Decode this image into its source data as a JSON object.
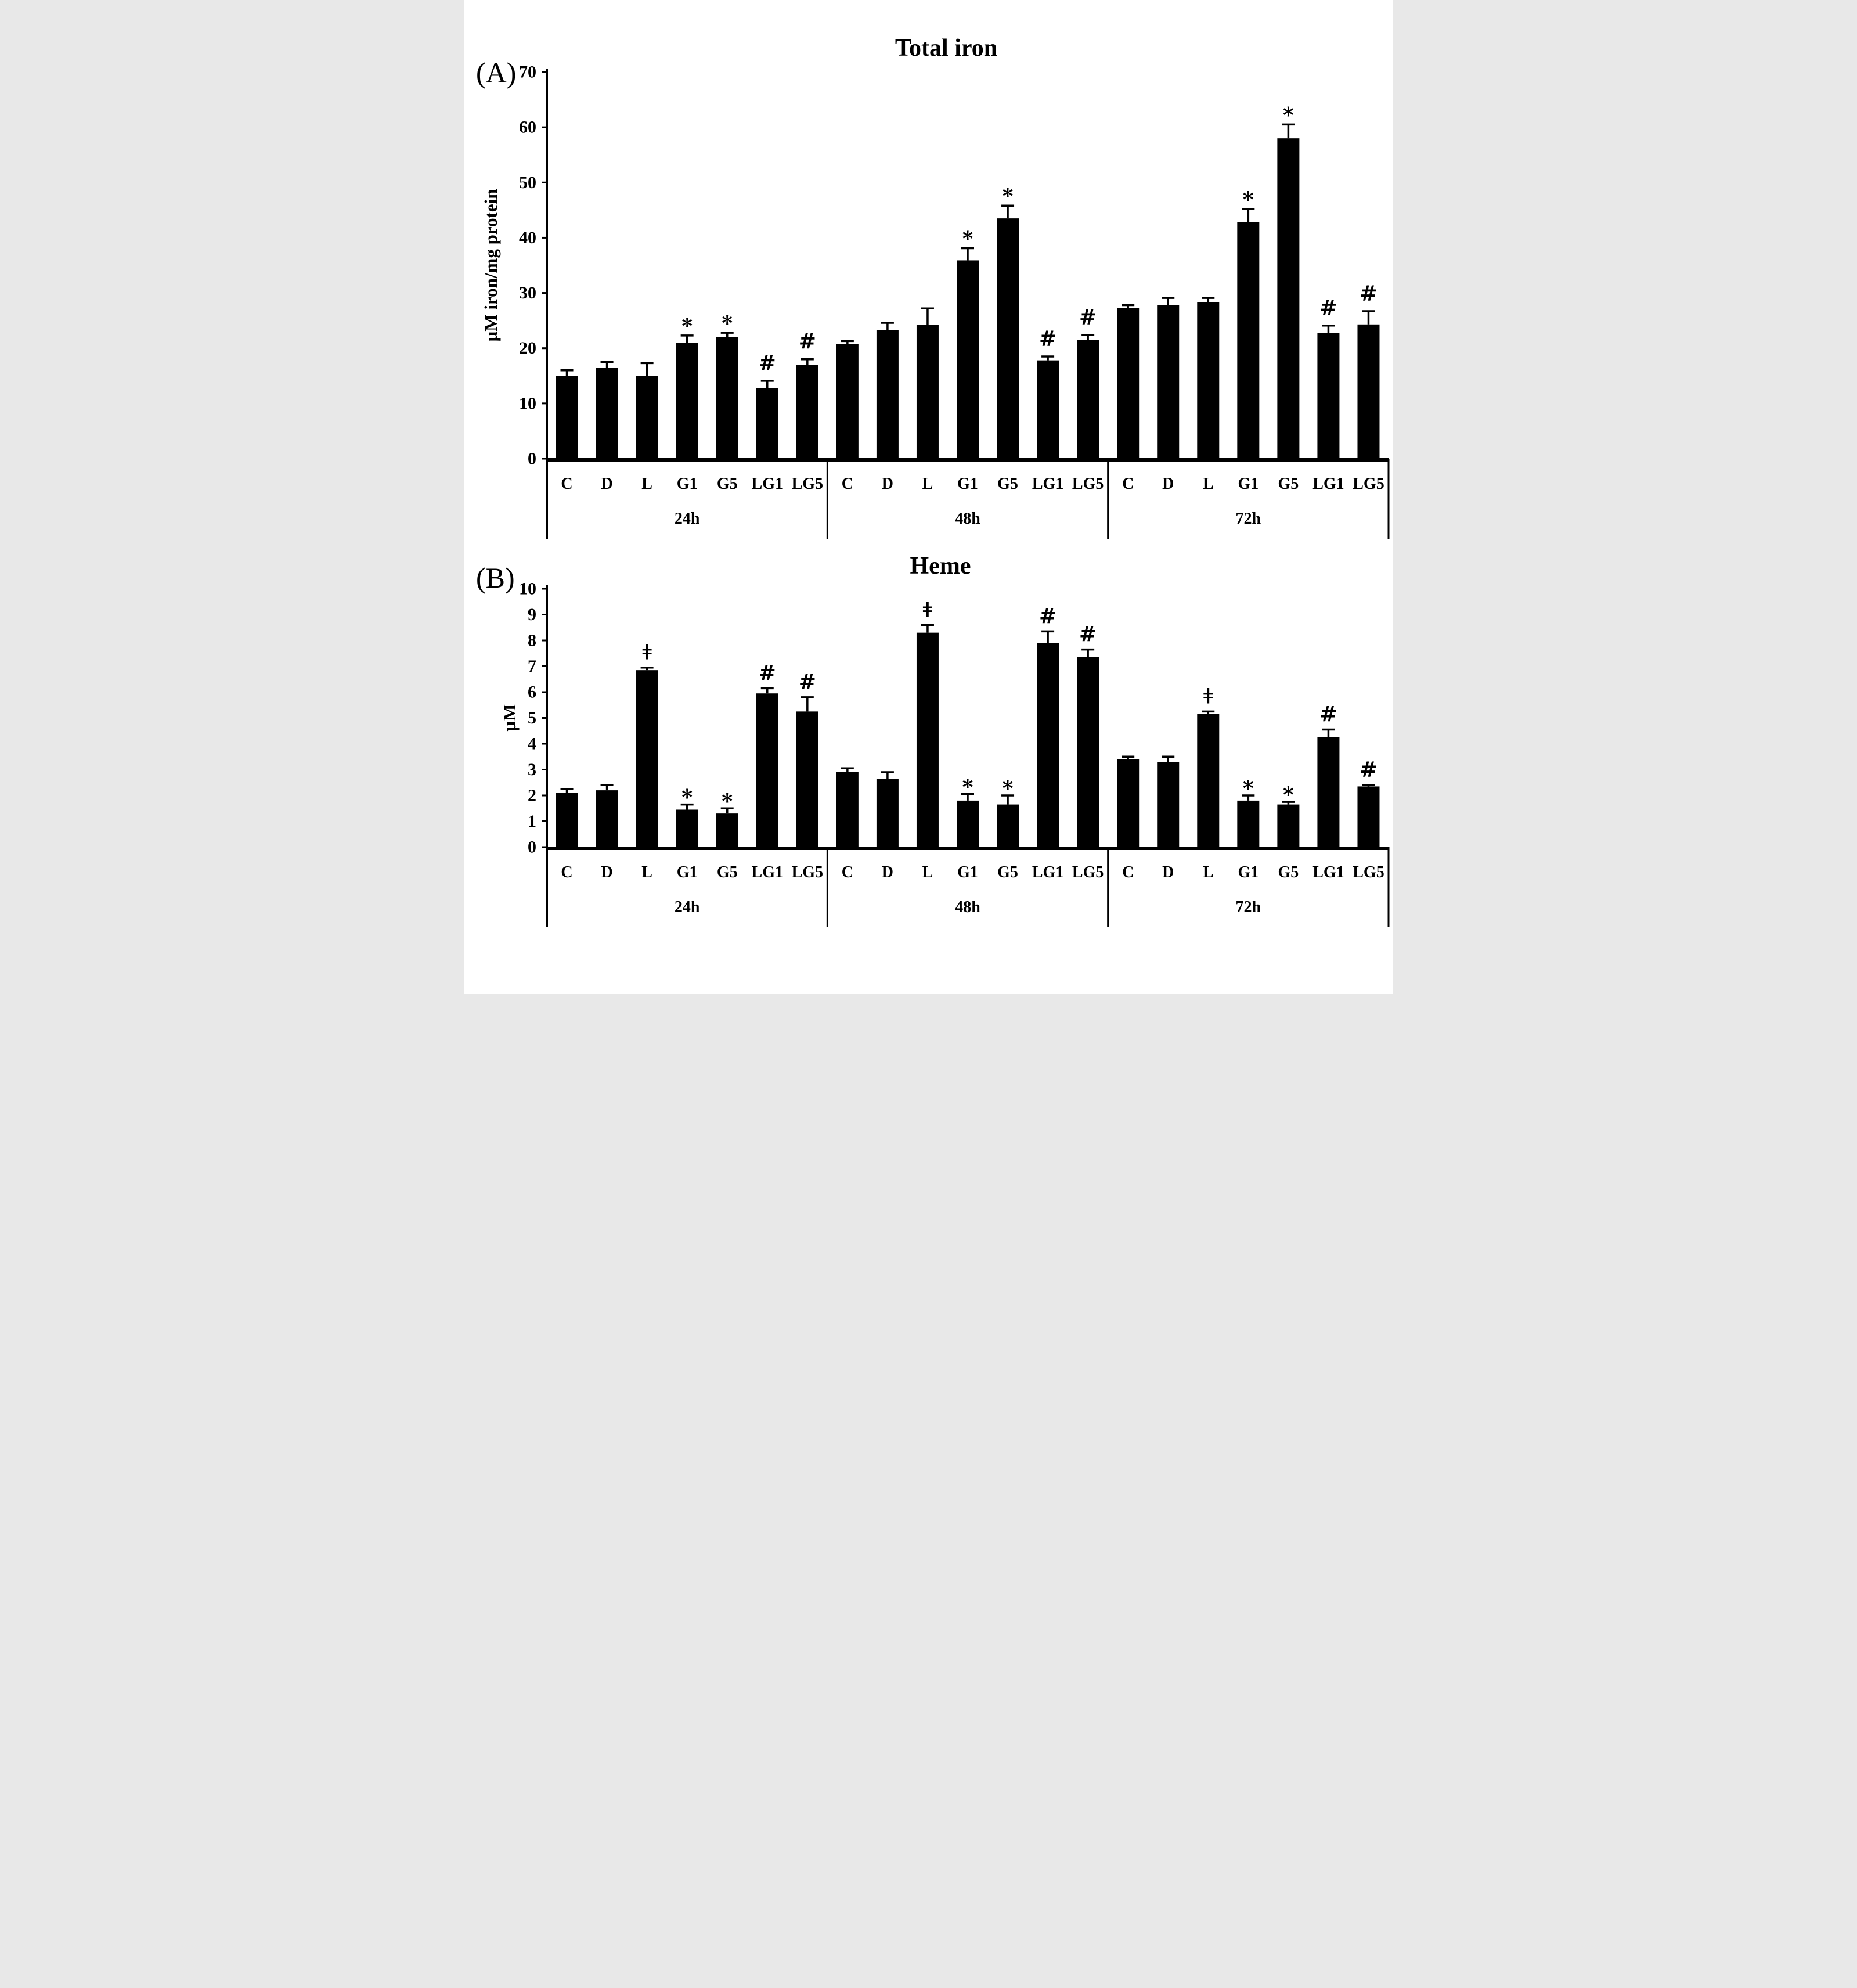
{
  "figure": {
    "background": "#ffffff",
    "bar_color": "#000000",
    "axis_color": "#000000",
    "text_color": "#000000"
  },
  "chart_data": [
    {
      "type": "bar",
      "panel_label": "(A)",
      "title": "Total iron",
      "ylabel": "µM iron/mg protein",
      "ylim": [
        0,
        70
      ],
      "ytick_step": 10,
      "grid": false,
      "legend": false,
      "error_bars": true,
      "categories": [
        "C",
        "D",
        "L",
        "G1",
        "G5",
        "LG1",
        "LG5"
      ],
      "series": [
        {
          "group": "24h",
          "values": [
            15.0,
            16.5,
            15.0,
            21.0,
            22.0,
            12.8,
            17.0
          ],
          "errors": [
            1.0,
            1.0,
            2.3,
            1.3,
            0.8,
            1.3,
            1.0
          ],
          "sig": [
            "",
            "",
            "",
            "*",
            "*",
            "#",
            "#"
          ]
        },
        {
          "group": "48h",
          "values": [
            20.8,
            23.3,
            24.2,
            35.9,
            43.5,
            17.8,
            21.5
          ],
          "errors": [
            0.5,
            1.3,
            3.0,
            2.2,
            2.3,
            0.7,
            0.9
          ],
          "sig": [
            "",
            "",
            "",
            "*",
            "*",
            "#",
            "#"
          ]
        },
        {
          "group": "72h",
          "values": [
            27.3,
            27.8,
            28.3,
            42.8,
            58.0,
            22.8,
            24.3
          ],
          "errors": [
            0.5,
            1.3,
            0.8,
            2.4,
            2.5,
            1.3,
            2.4
          ],
          "sig": [
            "",
            "",
            "",
            "*",
            "*",
            "#",
            "#"
          ]
        }
      ]
    },
    {
      "type": "bar",
      "panel_label": "(B)",
      "title": "Heme",
      "ylabel": "µM",
      "ylim": [
        0,
        10
      ],
      "ytick_step": 1,
      "grid": false,
      "legend": false,
      "error_bars": true,
      "categories": [
        "C",
        "D",
        "L",
        "G1",
        "G5",
        "LG1",
        "LG5"
      ],
      "series": [
        {
          "group": "24h",
          "values": [
            2.1,
            2.2,
            6.85,
            1.45,
            1.3,
            5.95,
            5.25
          ],
          "errors": [
            0.15,
            0.2,
            0.1,
            0.2,
            0.2,
            0.2,
            0.55
          ],
          "sig": [
            "",
            "",
            "ǂ",
            "*",
            "*",
            "#",
            "#"
          ]
        },
        {
          "group": "48h",
          "values": [
            2.9,
            2.65,
            8.3,
            1.8,
            1.65,
            7.9,
            7.35
          ],
          "errors": [
            0.15,
            0.25,
            0.3,
            0.25,
            0.35,
            0.45,
            0.3
          ],
          "sig": [
            "",
            "",
            "ǂ",
            "*",
            "*",
            "#",
            "#"
          ]
        },
        {
          "group": "72h",
          "values": [
            3.4,
            3.3,
            5.15,
            1.8,
            1.65,
            4.25,
            2.35
          ],
          "errors": [
            0.1,
            0.2,
            0.1,
            0.2,
            0.1,
            0.3,
            0.05
          ],
          "sig": [
            "",
            "",
            "ǂ",
            "*",
            "*",
            "#",
            "#"
          ]
        }
      ]
    }
  ]
}
